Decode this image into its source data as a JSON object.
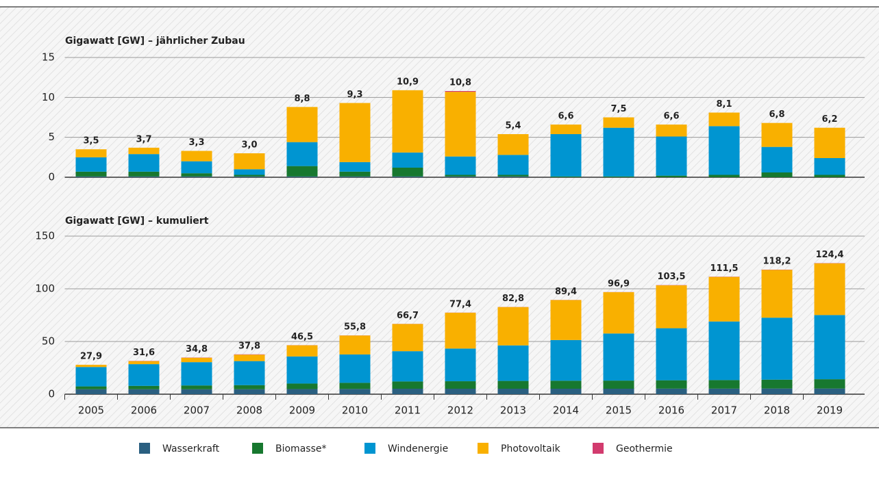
{
  "chart_data": [
    {
      "type": "stacked_bar",
      "title": "Gigawatt [GW] – jährlicher Zubau",
      "ylim": [
        0,
        15
      ],
      "yticks": [
        0,
        5,
        10,
        15
      ],
      "grid": true,
      "series": [
        {
          "name": "Wasserkraft",
          "color": "#2a5f80",
          "values": [
            0.1,
            0.1,
            0.1,
            0.1,
            0.1,
            0.1,
            0.1,
            0.1,
            0.1,
            0,
            0,
            0,
            0,
            0,
            0
          ]
        },
        {
          "name": "Biomasse*",
          "color": "#17782f",
          "values": [
            0.6,
            0.6,
            0.4,
            0.2,
            1.3,
            0.6,
            1.1,
            0.2,
            0.2,
            0.1,
            0.1,
            0.2,
            0.3,
            0.6,
            0.3
          ]
        },
        {
          "name": "Windenergie",
          "color": "#0095d1",
          "values": [
            1.8,
            2.2,
            1.5,
            0.7,
            3.0,
            1.2,
            1.9,
            2.3,
            2.5,
            5.3,
            6.1,
            4.9,
            6.1,
            3.2,
            2.1
          ]
        },
        {
          "name": "Photovoltaik",
          "color": "#f9b000",
          "values": [
            1.0,
            0.8,
            1.3,
            2.0,
            4.4,
            7.4,
            7.8,
            8.1,
            2.6,
            1.2,
            1.3,
            1.5,
            1.7,
            3.0,
            3.8
          ]
        },
        {
          "name": "Geothermie",
          "color": "#d23b6e",
          "values": [
            0,
            0,
            0,
            0,
            0,
            0,
            0,
            0.1,
            0,
            0,
            0,
            0,
            0,
            0,
            0
          ]
        }
      ],
      "totals": [
        3.5,
        3.7,
        3.3,
        3.0,
        8.8,
        9.3,
        10.9,
        10.8,
        5.4,
        6.6,
        7.5,
        6.6,
        8.1,
        6.8,
        6.2
      ],
      "total_labels": [
        "3,5",
        "3,7",
        "3,3",
        "3,0",
        "8,8",
        "9,3",
        "10,9",
        "10,8",
        "5,4",
        "6,6",
        "7,5",
        "6,6",
        "8,1",
        "6,8",
        "6,2"
      ]
    },
    {
      "type": "stacked_bar",
      "title": "Gigawatt [GW] – kumuliert",
      "categories": [
        "2005",
        "2006",
        "2007",
        "2008",
        "2009",
        "2010",
        "2011",
        "2012",
        "2013",
        "2014",
        "2015",
        "2016",
        "2017",
        "2018",
        "2019"
      ],
      "ylim": [
        0,
        150
      ],
      "yticks": [
        0,
        50,
        100,
        150
      ],
      "grid": true,
      "series": [
        {
          "name": "Wasserkraft",
          "color": "#2a5f80",
          "values": [
            4.7,
            4.7,
            4.7,
            4.7,
            4.9,
            5.0,
            5.2,
            5.2,
            5.2,
            5.2,
            5.2,
            5.3,
            5.3,
            5.4,
            5.4
          ]
        },
        {
          "name": "Biomasse*",
          "color": "#17782f",
          "values": [
            2.7,
            3.2,
            3.6,
            3.9,
            5.2,
            5.8,
            6.9,
            7.1,
            7.4,
            7.6,
            7.7,
            7.9,
            8.1,
            8.4,
            8.8
          ]
        },
        {
          "name": "Windenergie",
          "color": "#0095d1",
          "values": [
            18.4,
            20.6,
            22.1,
            22.8,
            25.7,
            26.9,
            28.7,
            31.0,
            33.7,
            38.6,
            44.7,
            49.4,
            55.6,
            58.8,
            60.9
          ]
        },
        {
          "name": "Photovoltaik",
          "color": "#f9b000",
          "values": [
            2.1,
            2.9,
            4.2,
            6.1,
            10.6,
            18.0,
            25.8,
            34.0,
            36.4,
            37.9,
            39.2,
            40.7,
            42.3,
            45.4,
            49.1
          ]
        },
        {
          "name": "Geothermie",
          "color": "#d23b6e",
          "values": [
            0,
            0.2,
            0.2,
            0.3,
            0.1,
            0.1,
            0.1,
            0.1,
            0.1,
            0.1,
            0.1,
            0.2,
            0.2,
            0.2,
            0.2
          ]
        }
      ],
      "totals": [
        27.9,
        31.6,
        34.8,
        37.8,
        46.5,
        55.8,
        66.7,
        77.4,
        82.8,
        89.4,
        96.9,
        103.5,
        111.5,
        118.2,
        124.4
      ],
      "total_labels": [
        "27,9",
        "31,6",
        "34,8",
        "37,8",
        "46,5",
        "55,8",
        "66,7",
        "77,4",
        "82,8",
        "89,4",
        "96,9",
        "103,5",
        "111,5",
        "118,2",
        "124,4"
      ]
    }
  ]
}
